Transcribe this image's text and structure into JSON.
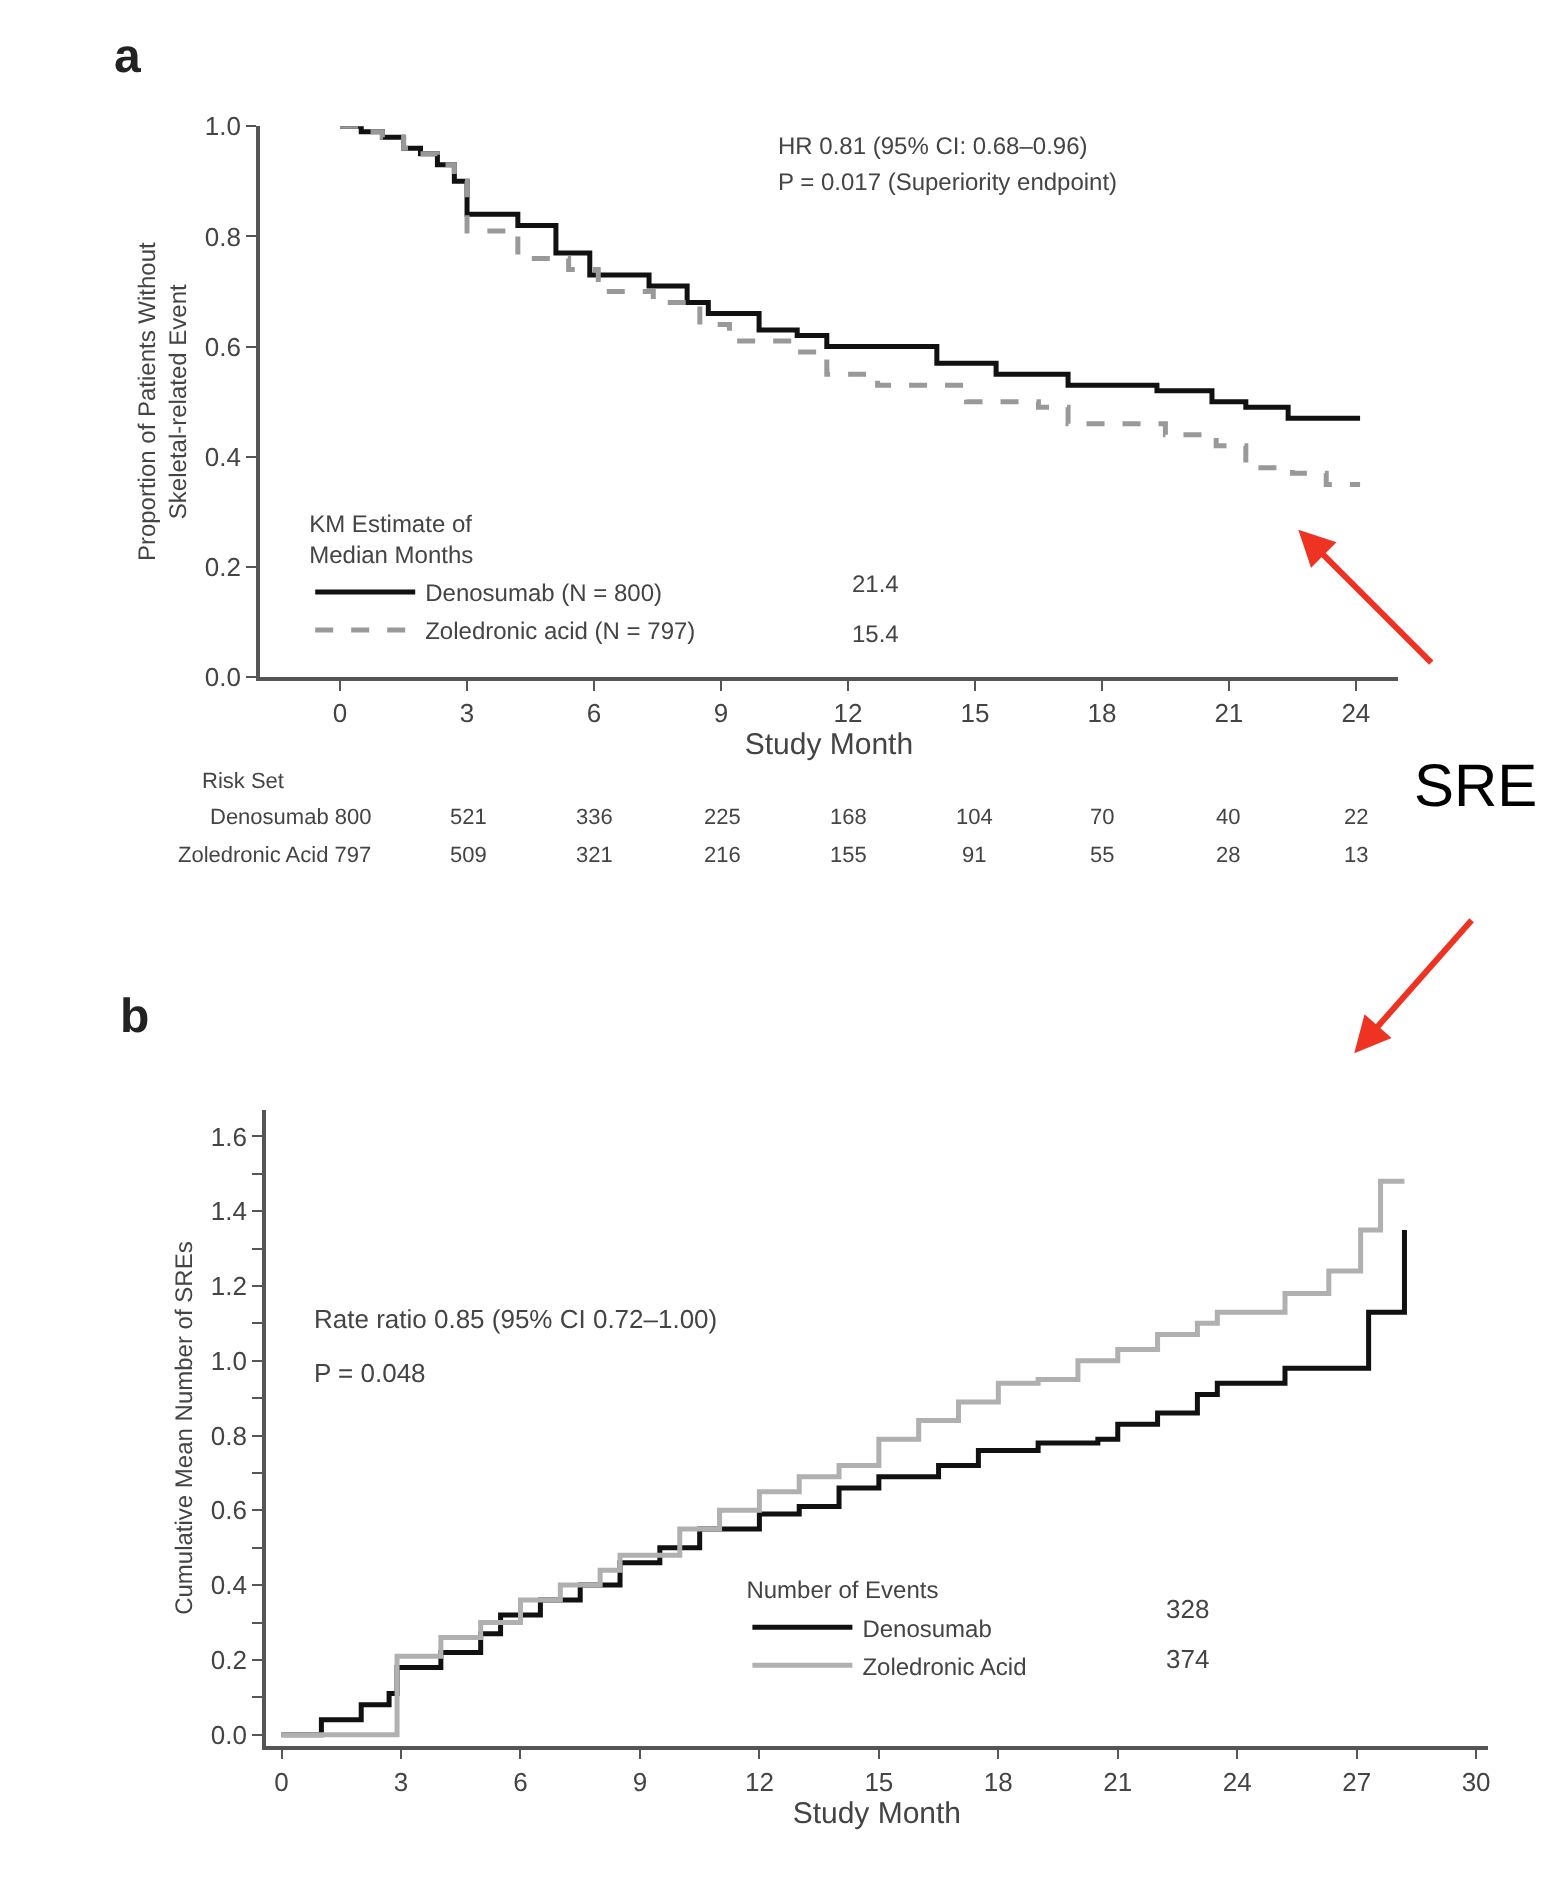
{
  "chart_data": [
    {
      "type": "step",
      "title": "a",
      "xlabel": "Study Month",
      "ylabel": "Proportion of Patients Without\nSkeletal-related Event",
      "legend_title": "KM Estimate of\nMedian Months",
      "legend": "bottom left",
      "xlim": [
        -1.9,
        25
      ],
      "xticks": [
        0,
        3,
        6,
        9,
        12,
        15,
        18,
        21,
        24
      ],
      "ylim": [
        0,
        1
      ],
      "yticks": [
        {
          "value": 0,
          "label": "0.0"
        },
        0.2,
        0.4,
        0.6,
        0.8,
        {
          "value": 1,
          "label": "1.0"
        }
      ],
      "series": [
        {
          "name": "Denosumab (N = 800)",
          "color": "#111111",
          "line_style": "solid",
          "x": [
            0,
            0.5,
            1.0,
            1.5,
            1.9,
            2.3,
            2.7,
            3.0,
            4.2,
            5.1,
            5.9,
            7.3,
            8.2,
            8.7,
            9.9,
            10.8,
            11.5,
            13.2,
            14.1,
            15.5,
            17.2,
            19.3,
            20.6,
            21.4,
            22.4,
            24.1
          ],
          "values": [
            1.0,
            0.99,
            0.98,
            0.96,
            0.95,
            0.93,
            0.9,
            0.84,
            0.82,
            0.77,
            0.73,
            0.71,
            0.68,
            0.66,
            0.63,
            0.62,
            0.6,
            0.6,
            0.57,
            0.55,
            0.53,
            0.52,
            0.5,
            0.49,
            0.47,
            0.47
          ]
        },
        {
          "name": "Zoledronic acid (N = 797)",
          "color": "#999999",
          "line_style": "dashed",
          "x": [
            0,
            0.5,
            1.0,
            1.5,
            1.8,
            2.3,
            2.7,
            3.0,
            4.2,
            5.4,
            6.1,
            7.4,
            8.5,
            9.2,
            10.6,
            11.5,
            12.7,
            14.8,
            16.5,
            17.2,
            19.5,
            20.7,
            21.4,
            22.5,
            23.3,
            24.1
          ],
          "values": [
            1.0,
            0.99,
            0.98,
            0.96,
            0.95,
            0.93,
            0.9,
            0.81,
            0.76,
            0.74,
            0.7,
            0.68,
            0.64,
            0.61,
            0.59,
            0.55,
            0.53,
            0.5,
            0.49,
            0.46,
            0.44,
            0.42,
            0.38,
            0.37,
            0.35,
            0.35
          ]
        }
      ],
      "annotations": [
        "HR 0.81 (95% CI: 0.68–0.96)",
        "P = 0.017 (Superiority endpoint)",
        "21.4",
        "15.4",
        "Risk Set",
        "Denosumab 800",
        "Zoledronic Acid 797",
        "SRE",
        "521",
        "336",
        "225",
        "168",
        "104",
        "70",
        "40",
        "22",
        "509",
        "321",
        "216",
        "155",
        "91",
        "55",
        "28",
        "13"
      ]
    },
    {
      "type": "step",
      "title": "b",
      "xlabel": "Study Month",
      "ylabel": "Cumulative Mean Number of SREs",
      "legend_title": "Number of Events",
      "legend": "bottom right",
      "xlim": [
        -0.4,
        30.3
      ],
      "xticks": [
        0,
        3,
        6,
        9,
        12,
        15,
        18,
        21,
        24,
        27,
        30
      ],
      "ylim": [
        -0.03,
        1.67
      ],
      "yticks": [
        {
          "value": 0,
          "label": "0.0"
        },
        {
          "value": 0.1,
          "label": null
        },
        0.2,
        {
          "value": 0.3,
          "label": null
        },
        0.4,
        {
          "value": 0.5,
          "label": null
        },
        0.6,
        {
          "value": 0.7,
          "label": null
        },
        0.8,
        {
          "value": 0.9,
          "label": null
        },
        {
          "value": 1,
          "label": "1.0"
        },
        {
          "value": 1.1,
          "label": null
        },
        1.2,
        {
          "value": 1.3,
          "label": null
        },
        1.4,
        {
          "value": 1.5,
          "label": null
        },
        1.6
      ],
      "series": [
        {
          "name": "Denosumab",
          "color": "#111111",
          "line_style": "solid",
          "x": [
            0,
            1,
            2,
            2.7,
            2.9,
            4,
            5,
            5.5,
            6.5,
            7.5,
            8.5,
            9.5,
            10.5,
            12,
            13,
            14,
            15,
            16.5,
            17.5,
            19,
            20.5,
            21,
            22,
            23,
            23.5,
            25.2,
            27.3,
            28.2
          ],
          "values": [
            0,
            0.04,
            0.08,
            0.11,
            0.18,
            0.22,
            0.27,
            0.32,
            0.36,
            0.4,
            0.46,
            0.5,
            0.55,
            0.59,
            0.61,
            0.66,
            0.69,
            0.72,
            0.76,
            0.78,
            0.79,
            0.83,
            0.86,
            0.91,
            0.94,
            0.98,
            1.13,
            1.35
          ]
        },
        {
          "name": "Zoledronic Acid",
          "color": "#b0b0b0",
          "line_style": "solid",
          "x": [
            0,
            2.9,
            4,
            5,
            6,
            7,
            8,
            8.5,
            10,
            11,
            12,
            13,
            14,
            15,
            16,
            17,
            18,
            19,
            20,
            21,
            22,
            23,
            23.5,
            25.2,
            26.3,
            27.1,
            27.6,
            28.2
          ],
          "values": [
            0,
            0.21,
            0.26,
            0.3,
            0.36,
            0.4,
            0.44,
            0.48,
            0.55,
            0.6,
            0.65,
            0.69,
            0.72,
            0.79,
            0.84,
            0.89,
            0.94,
            0.95,
            1.0,
            1.03,
            1.07,
            1.1,
            1.13,
            1.18,
            1.24,
            1.35,
            1.48,
            1.48
          ]
        }
      ],
      "annotations": [
        "Rate ratio 0.85 (95% CI 0.72–1.00)",
        "P = 0.048",
        "328",
        "374"
      ]
    }
  ]
}
